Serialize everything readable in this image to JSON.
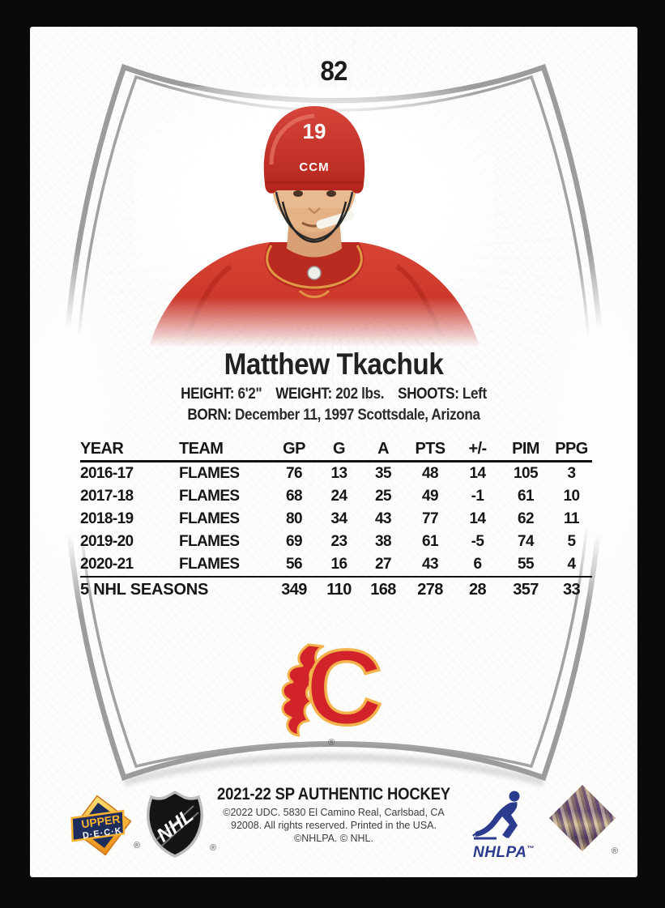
{
  "card": {
    "number": "82",
    "player_name": "Matthew Tkachuk",
    "bio": {
      "height_label": "HEIGHT:",
      "height_value": "6'2\"",
      "weight_label": "WEIGHT:",
      "weight_value": "202 lbs.",
      "shoots_label": "SHOOTS:",
      "shoots_value": "Left",
      "born_label": "BORN:",
      "born_value": "December 11, 1997 Scottsdale, Arizona"
    },
    "stats_table": {
      "headers": [
        "YEAR",
        "TEAM",
        "GP",
        "G",
        "A",
        "PTS",
        "+/-",
        "PIM",
        "PPG"
      ],
      "rows": [
        [
          "2016-17",
          "FLAMES",
          "76",
          "13",
          "35",
          "48",
          "14",
          "105",
          "3"
        ],
        [
          "2017-18",
          "FLAMES",
          "68",
          "24",
          "25",
          "49",
          "-1",
          "61",
          "10"
        ],
        [
          "2018-19",
          "FLAMES",
          "80",
          "34",
          "43",
          "77",
          "14",
          "62",
          "11"
        ],
        [
          "2019-20",
          "FLAMES",
          "69",
          "23",
          "38",
          "61",
          "-5",
          "74",
          "5"
        ],
        [
          "2020-21",
          "FLAMES",
          "56",
          "16",
          "27",
          "43",
          "6",
          "55",
          "4"
        ]
      ],
      "totals": [
        "5 NHL SEASONS",
        "349",
        "110",
        "168",
        "278",
        "28",
        "357",
        "33"
      ]
    },
    "photo": {
      "helmet_number": "19",
      "helmet_brand": "CCM"
    },
    "team_logo_name": "calgary-flames-flaming-c",
    "footer": {
      "product_title": "2021-22 SP AUTHENTIC HOCKEY",
      "copyright_line1": "©2022 UDC. 5830 El Camino Real, Carlsbad, CA",
      "copyright_line2": "92008. All rights reserved. Printed in the USA.",
      "copyright_line3": "©NHLPA. © NHL.",
      "upper_deck_word1": "UPPER",
      "upper_deck_word2": "D·E·C·K",
      "nhl_label": "NHL",
      "nhlpa_label": "NHLPA"
    },
    "marks": {
      "registered": "®",
      "trademark": "™"
    },
    "colors": {
      "flames_red": "#d2232a",
      "flames_yellow": "#f3b24a",
      "frame_gray": "#9c9c9c",
      "nhlpa_blue": "#2b3b8e",
      "ud_navy": "#1d2d5c",
      "ud_gold": "#f9b233"
    }
  }
}
